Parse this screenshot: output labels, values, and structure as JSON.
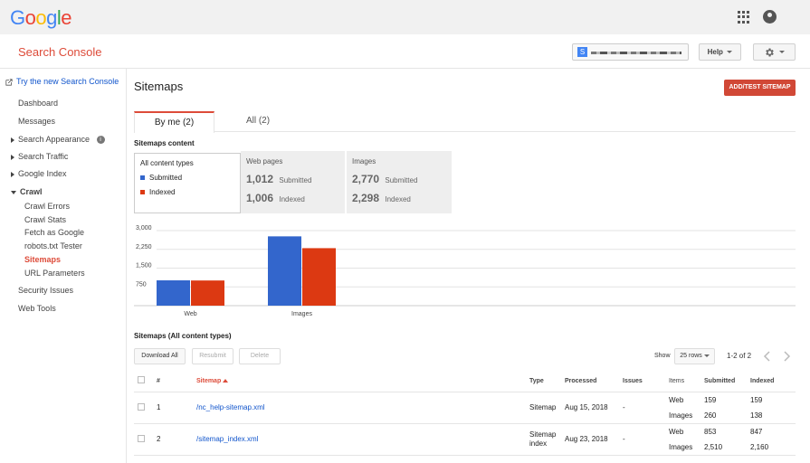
{
  "top": {
    "logo_letters": [
      {
        "ch": "G",
        "color": "#4285f4"
      },
      {
        "ch": "o",
        "color": "#ea4335"
      },
      {
        "ch": "o",
        "color": "#fbbc05"
      },
      {
        "ch": "g",
        "color": "#4285f4"
      },
      {
        "ch": "l",
        "color": "#34a853"
      },
      {
        "ch": "e",
        "color": "#ea4335"
      }
    ]
  },
  "header": {
    "title": "Search Console",
    "help": "Help",
    "settings_icon": "gear-icon"
  },
  "sidebar": {
    "new_console": "Try the new Search Console",
    "items": [
      "Dashboard",
      "Messages",
      "Search Appearance",
      "Search Traffic",
      "Google Index",
      "Crawl"
    ],
    "crawl_sub": [
      "Crawl Errors",
      "Crawl Stats",
      "Fetch as Google",
      "robots.txt Tester",
      "Sitemaps",
      "URL Parameters"
    ],
    "bottom": [
      "Security Issues",
      "Web Tools"
    ]
  },
  "page": {
    "title": "Sitemaps",
    "add_button": "ADD/TEST SITEMAP",
    "tabs": [
      "By me (2)",
      "All (2)"
    ],
    "content_title": "Sitemaps content",
    "content_types": {
      "label": "All content types",
      "submitted": "Submitted",
      "indexed": "Indexed"
    },
    "boxes": [
      {
        "title": "Web pages",
        "submitted": "1,012",
        "indexed": "1,006",
        "sub_label": "Submitted",
        "idx_label": "Indexed"
      },
      {
        "title": "Images",
        "submitted": "2,770",
        "indexed": "2,298",
        "sub_label": "Submitted",
        "idx_label": "Indexed"
      }
    ]
  },
  "colors": {
    "submitted": "#3366cc",
    "indexed": "#dc3912",
    "accent": "#dd4b39"
  },
  "chart_data": {
    "type": "bar",
    "categories": [
      "Web",
      "Images"
    ],
    "series": [
      {
        "name": "Submitted",
        "values": [
          1012,
          2770
        ]
      },
      {
        "name": "Indexed",
        "values": [
          1006,
          2298
        ]
      }
    ],
    "yticks": [
      "3,000",
      "2,250",
      "1,500",
      "750"
    ],
    "ylim": [
      0,
      3000
    ]
  },
  "list": {
    "title": "Sitemaps (All content types)",
    "download": "Download All",
    "resubmit": "Resubmit",
    "delete": "Delete",
    "show": "Show",
    "rows": "25 rows",
    "range": "1-2 of 2",
    "headers": {
      "num": "#",
      "sitemap": "Sitemap",
      "type": "Type",
      "processed": "Processed",
      "issues": "Issues",
      "items": "Items",
      "submitted": "Submitted",
      "indexed": "Indexed"
    },
    "rows_data": [
      {
        "num": "1",
        "sitemap": "/nc_help-sitemap.xml",
        "type": "Sitemap",
        "processed": "Aug 15, 2018",
        "issues": "-",
        "items": [
          {
            "name": "Web",
            "submitted": "159",
            "indexed": "159"
          },
          {
            "name": "Images",
            "submitted": "260",
            "indexed": "138"
          }
        ]
      },
      {
        "num": "2",
        "sitemap": "/sitemap_index.xml",
        "type": "Sitemap index",
        "processed": "Aug 23, 2018",
        "issues": "-",
        "items": [
          {
            "name": "Web",
            "submitted": "853",
            "indexed": "847"
          },
          {
            "name": "Images",
            "submitted": "2,510",
            "indexed": "2,160"
          }
        ]
      }
    ]
  }
}
